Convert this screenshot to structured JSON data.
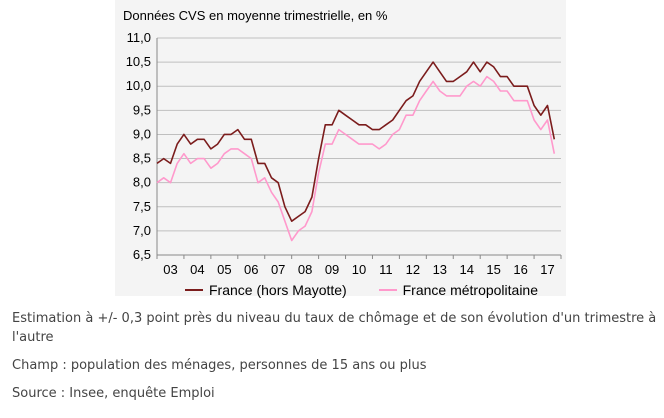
{
  "chart_data": {
    "type": "line",
    "title": "Données CVS en moyenne trimestrielle, en %",
    "xlabel": "",
    "ylabel": "",
    "ylim": [
      6.5,
      11.0
    ],
    "y_ticks": [
      "6,5",
      "7,0",
      "7,5",
      "8,0",
      "8,5",
      "9,0",
      "9,5",
      "10,0",
      "10,5",
      "11,0"
    ],
    "x_range": [
      2003.0,
      2018.0
    ],
    "x_tick_labels": [
      "03",
      "04",
      "05",
      "06",
      "07",
      "08",
      "09",
      "10",
      "11",
      "12",
      "13",
      "14",
      "15",
      "16",
      "17"
    ],
    "grid": "horizontal",
    "legend": "bottom",
    "x": [
      2003.0,
      2003.25,
      2003.5,
      2003.75,
      2004.0,
      2004.25,
      2004.5,
      2004.75,
      2005.0,
      2005.25,
      2005.5,
      2005.75,
      2006.0,
      2006.25,
      2006.5,
      2006.75,
      2007.0,
      2007.25,
      2007.5,
      2007.75,
      2008.0,
      2008.25,
      2008.5,
      2008.75,
      2009.0,
      2009.25,
      2009.5,
      2009.75,
      2010.0,
      2010.25,
      2010.5,
      2010.75,
      2011.0,
      2011.25,
      2011.5,
      2011.75,
      2012.0,
      2012.25,
      2012.5,
      2012.75,
      2013.0,
      2013.25,
      2013.5,
      2013.75,
      2014.0,
      2014.25,
      2014.5,
      2014.75,
      2015.0,
      2015.25,
      2015.5,
      2015.75,
      2016.0,
      2016.25,
      2016.5,
      2016.75,
      2017.0,
      2017.25,
      2017.5,
      2017.75
    ],
    "series": [
      {
        "name": "France (hors Mayotte)",
        "color": "#7b1c1c",
        "values": [
          8.4,
          8.5,
          8.4,
          8.8,
          9.0,
          8.8,
          8.9,
          8.9,
          8.7,
          8.8,
          9.0,
          9.0,
          9.1,
          8.9,
          8.9,
          8.4,
          8.4,
          8.1,
          8.0,
          7.5,
          7.2,
          7.3,
          7.4,
          7.7,
          8.5,
          9.2,
          9.2,
          9.5,
          9.4,
          9.3,
          9.2,
          9.2,
          9.1,
          9.1,
          9.2,
          9.3,
          9.5,
          9.7,
          9.8,
          10.1,
          10.3,
          10.5,
          10.3,
          10.1,
          10.1,
          10.2,
          10.3,
          10.5,
          10.3,
          10.5,
          10.4,
          10.2,
          10.2,
          10.0,
          10.0,
          10.0,
          9.6,
          9.4,
          9.6,
          8.9
        ]
      },
      {
        "name": "France métropolitaine",
        "color": "#ff99cc",
        "values": [
          8.0,
          8.1,
          8.0,
          8.4,
          8.6,
          8.4,
          8.5,
          8.5,
          8.3,
          8.4,
          8.6,
          8.7,
          8.7,
          8.6,
          8.5,
          8.0,
          8.1,
          7.8,
          7.6,
          7.2,
          6.8,
          7.0,
          7.1,
          7.4,
          8.2,
          8.8,
          8.8,
          9.1,
          9.0,
          8.9,
          8.8,
          8.8,
          8.8,
          8.7,
          8.8,
          9.0,
          9.1,
          9.4,
          9.4,
          9.7,
          9.9,
          10.1,
          9.9,
          9.8,
          9.8,
          9.8,
          10.0,
          10.1,
          10.0,
          10.2,
          10.1,
          9.9,
          9.9,
          9.7,
          9.7,
          9.7,
          9.3,
          9.1,
          9.3,
          8.6
        ]
      }
    ]
  },
  "notes": [
    "Estimation à +/- 0,3 point près du niveau du taux de chômage et de son évolution d'un trimestre à l'autre",
    "Champ : population des ménages, personnes de 15 ans ou plus",
    "Source : Insee, enquête Emploi"
  ]
}
